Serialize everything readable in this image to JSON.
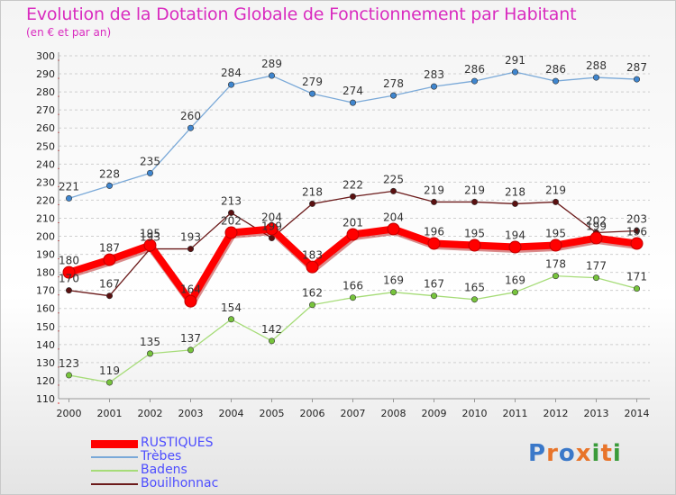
{
  "title": "Evolution de la Dotation Globale de Fonctionnement par Habitant",
  "subtitle": "(en € et par an)",
  "logo": "Proxiti",
  "chart_data": {
    "type": "line",
    "x": [
      "2000",
      "2001",
      "2002",
      "2003",
      "2004",
      "2005",
      "2006",
      "2007",
      "2008",
      "2009",
      "2010",
      "2011",
      "2012",
      "2013",
      "2014"
    ],
    "ylim": [
      110,
      300
    ],
    "ytick_step": 10,
    "grid": "horizontal dashed",
    "legend": "bottom-left",
    "series": [
      {
        "name": "Bouilhonnac",
        "color": "#6b1a1a",
        "marker": "#5a1010",
        "values": [
          170,
          167,
          193,
          193,
          213,
          199,
          218,
          222,
          225,
          219,
          219,
          218,
          219,
          202,
          203
        ]
      },
      {
        "name": "Badens",
        "color": "#a6dc78",
        "marker": "#77c43c",
        "values": [
          123,
          119,
          135,
          137,
          154,
          142,
          162,
          166,
          169,
          167,
          165,
          169,
          178,
          177,
          171
        ]
      },
      {
        "name": "Trèbes",
        "color": "#7aa9d8",
        "marker": "#3f86cf",
        "values": [
          221,
          228,
          235,
          260,
          284,
          289,
          279,
          274,
          278,
          283,
          286,
          291,
          286,
          288,
          287
        ]
      },
      {
        "name": "RUSTIQUES",
        "color": "#ff0000",
        "marker": "#ff0000",
        "values": [
          180,
          187,
          195,
          164,
          202,
          204,
          183,
          201,
          204,
          196,
          195,
          194,
          195,
          199,
          196
        ]
      }
    ]
  }
}
